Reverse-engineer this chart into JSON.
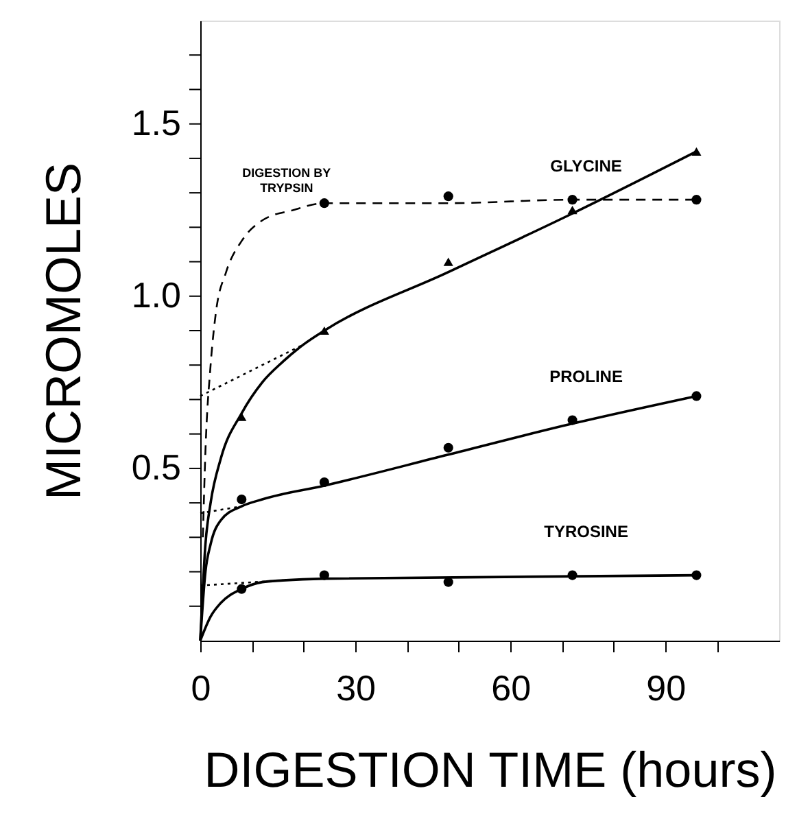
{
  "chart_data": {
    "type": "line",
    "xlabel": "DIGESTION  TIME (hours)",
    "ylabel": "MICROMOLES",
    "xlim": [
      0,
      112
    ],
    "ylim": [
      0,
      1.8
    ],
    "xticks": [
      0,
      {
        "value": 10,
        "label": null
      },
      {
        "value": 20,
        "label": null
      },
      30,
      {
        "value": 40,
        "label": null
      },
      {
        "value": 50,
        "label": null
      },
      60,
      {
        "value": 70,
        "label": null
      },
      {
        "value": 80,
        "label": null
      },
      90,
      {
        "value": 100,
        "label": null
      }
    ],
    "yticks": [
      {
        "value": 0.1,
        "label": null
      },
      {
        "value": 0.2,
        "label": null
      },
      {
        "value": 0.3,
        "label": null
      },
      {
        "value": 0.4,
        "label": null
      },
      0.5,
      {
        "value": 0.6,
        "label": null
      },
      {
        "value": 0.7,
        "label": null
      },
      {
        "value": 0.8,
        "label": null
      },
      {
        "value": 0.9,
        "label": null
      },
      {
        "value": 1.0,
        "label": "1.0"
      },
      {
        "value": 1.1,
        "label": null
      },
      {
        "value": 1.2,
        "label": null
      },
      {
        "value": 1.3,
        "label": null
      },
      {
        "value": 1.4,
        "label": null
      },
      1.5,
      {
        "value": 1.6,
        "label": null
      },
      {
        "value": 1.7,
        "label": null
      }
    ],
    "grid": false,
    "series": [
      {
        "name": "GLYCINE",
        "type": "scatter",
        "marker": "triangle",
        "color": "#000000",
        "x": [
          8,
          24,
          48,
          72,
          96
        ],
        "values": [
          0.65,
          0.9,
          1.1,
          1.25,
          1.42
        ]
      },
      {
        "name": "PROLINE",
        "type": "scatter",
        "marker": "circle",
        "color": "#000000",
        "x": [
          8,
          24,
          48,
          72,
          96
        ],
        "values": [
          0.41,
          0.46,
          0.56,
          0.64,
          0.71
        ]
      },
      {
        "name": "TYROSINE",
        "type": "scatter",
        "marker": "circle",
        "color": "#000000",
        "x": [
          8,
          24,
          48,
          72,
          96
        ],
        "values": [
          0.15,
          0.19,
          0.17,
          0.19,
          0.19
        ]
      },
      {
        "type": "scatter",
        "marker": "circle",
        "color": "#000000",
        "x": [
          24,
          48,
          72,
          96
        ],
        "values": [
          1.27,
          1.29,
          1.28,
          1.28
        ]
      },
      {
        "line_style": "solid",
        "color": "#000000",
        "x": [
          0,
          1,
          2,
          4,
          8,
          12,
          16,
          20,
          24,
          48,
          72,
          96
        ],
        "values": [
          0,
          0.28,
          0.4,
          0.53,
          0.66,
          0.75,
          0.81,
          0.86,
          0.9,
          1.07,
          1.24,
          1.42
        ]
      },
      {
        "line_style": "solid",
        "color": "#000000",
        "x": [
          0,
          1,
          2,
          4,
          8,
          12,
          24,
          48,
          72,
          96
        ],
        "values": [
          0,
          0.2,
          0.28,
          0.35,
          0.39,
          0.41,
          0.45,
          0.54,
          0.63,
          0.71
        ]
      },
      {
        "line_style": "solid",
        "color": "#000000",
        "x": [
          0,
          2,
          4,
          8,
          12,
          16,
          24,
          96
        ],
        "values": [
          0,
          0.07,
          0.11,
          0.15,
          0.17,
          0.175,
          0.18,
          0.19
        ]
      },
      {
        "type": "line",
        "line_style": "dashed",
        "color": "#000000",
        "x": [
          0.5,
          1,
          2,
          3,
          5,
          8,
          12,
          18,
          24,
          48,
          72,
          96
        ],
        "values": [
          0.3,
          0.55,
          0.8,
          0.95,
          1.07,
          1.16,
          1.22,
          1.25,
          1.27,
          1.27,
          1.28,
          1.28
        ]
      },
      {
        "type": "line",
        "line_style": "dotted",
        "color": "#000000",
        "x": [
          0,
          20
        ],
        "values": [
          0.71,
          0.86
        ]
      },
      {
        "type": "line",
        "line_style": "dotted",
        "color": "#000000",
        "x": [
          0,
          8
        ],
        "values": [
          0.37,
          0.39
        ]
      },
      {
        "type": "line",
        "line_style": "dotted",
        "color": "#000000",
        "x": [
          0,
          16
        ],
        "values": [
          0.16,
          0.175
        ]
      }
    ],
    "annotations": [
      {
        "text": "DIGESTION BY\nTRYPSIN",
        "x": 22,
        "y": 1.27
      }
    ]
  }
}
